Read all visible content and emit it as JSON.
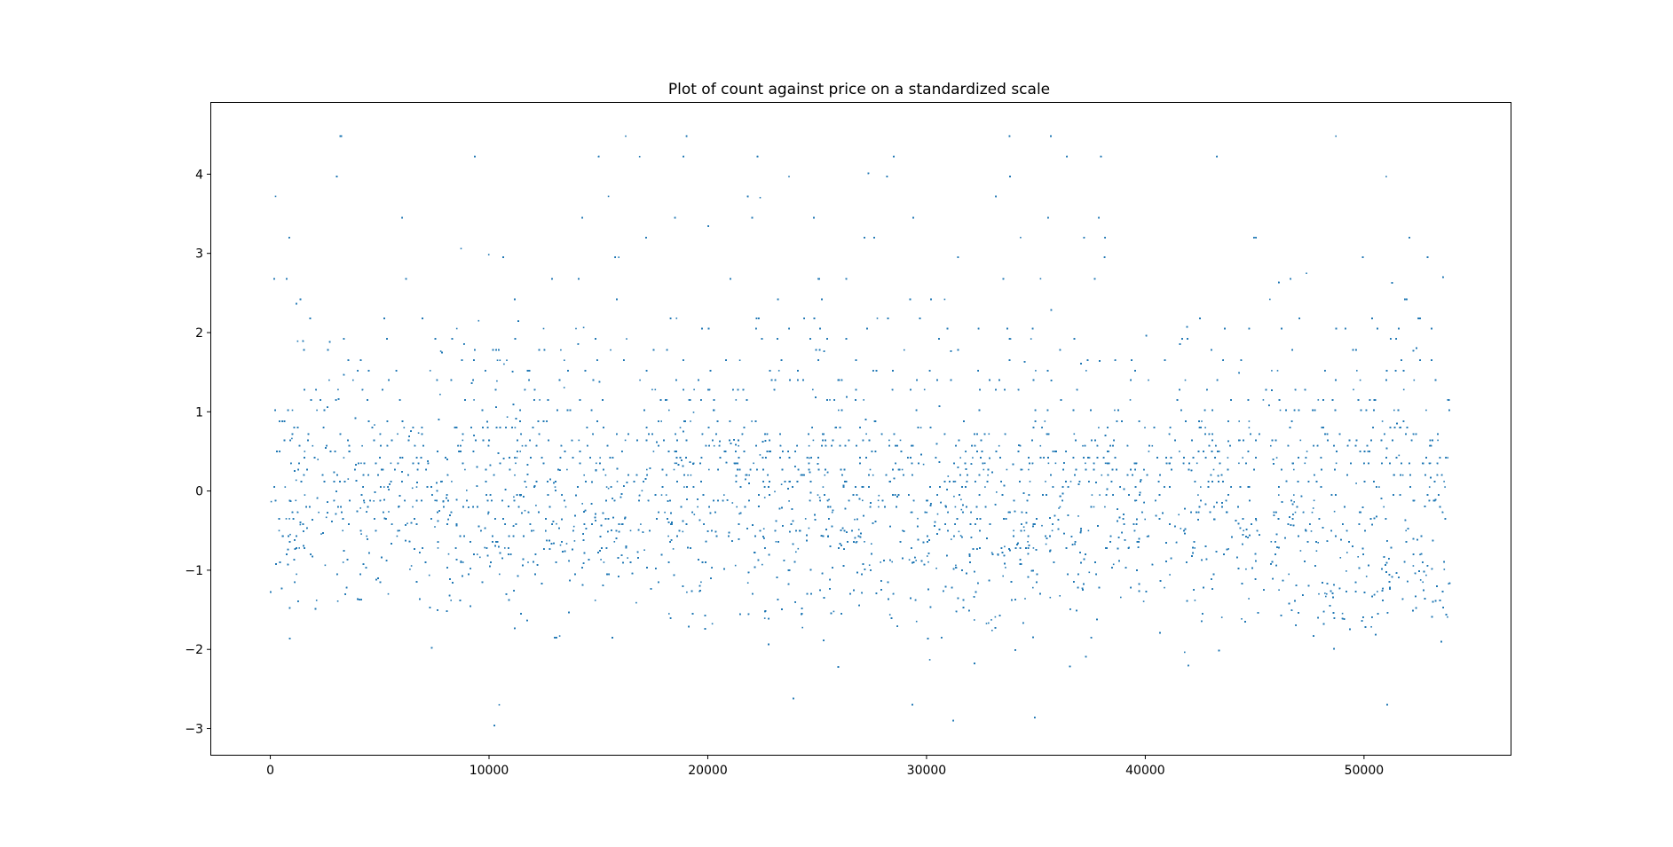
{
  "chart_data": {
    "type": "scatter",
    "title": "Plot of count against price on a standardized scale",
    "xlabel": "",
    "ylabel": "",
    "xlim": [
      -2700,
      56700
    ],
    "ylim": [
      -3.33,
      4.9
    ],
    "x_ticks": [
      0,
      10000,
      20000,
      30000,
      40000,
      50000
    ],
    "y_ticks": [
      -3,
      -2,
      -1,
      0,
      1,
      2,
      3,
      4
    ],
    "grid": false,
    "legend": "none",
    "marker_color": "#1f77b4",
    "marker": "point",
    "n_points": 53940,
    "x_range": [
      0,
      53940
    ],
    "y_range": [
      -2.96,
      4.62
    ],
    "y_levels": [
      -2.96,
      -2.7,
      -2.62,
      -1.85,
      -1.55,
      -1.38,
      -1.3,
      -1.22,
      -1.15,
      -1.05,
      -0.97,
      -0.9,
      -0.8,
      -0.72,
      -0.64,
      -0.57,
      -0.5,
      -0.42,
      -0.35,
      -0.27,
      -0.2,
      -0.12,
      -0.05,
      0.05,
      0.12,
      0.2,
      0.27,
      0.35,
      0.42,
      0.5,
      0.57,
      0.64,
      0.72,
      0.8,
      0.88,
      1.02,
      1.15,
      1.28,
      1.4,
      1.52,
      1.65,
      1.78,
      1.92,
      2.05,
      2.18,
      2.42,
      2.68,
      2.95,
      3.2,
      3.45,
      3.72,
      3.97,
      4.22,
      4.48
    ]
  }
}
